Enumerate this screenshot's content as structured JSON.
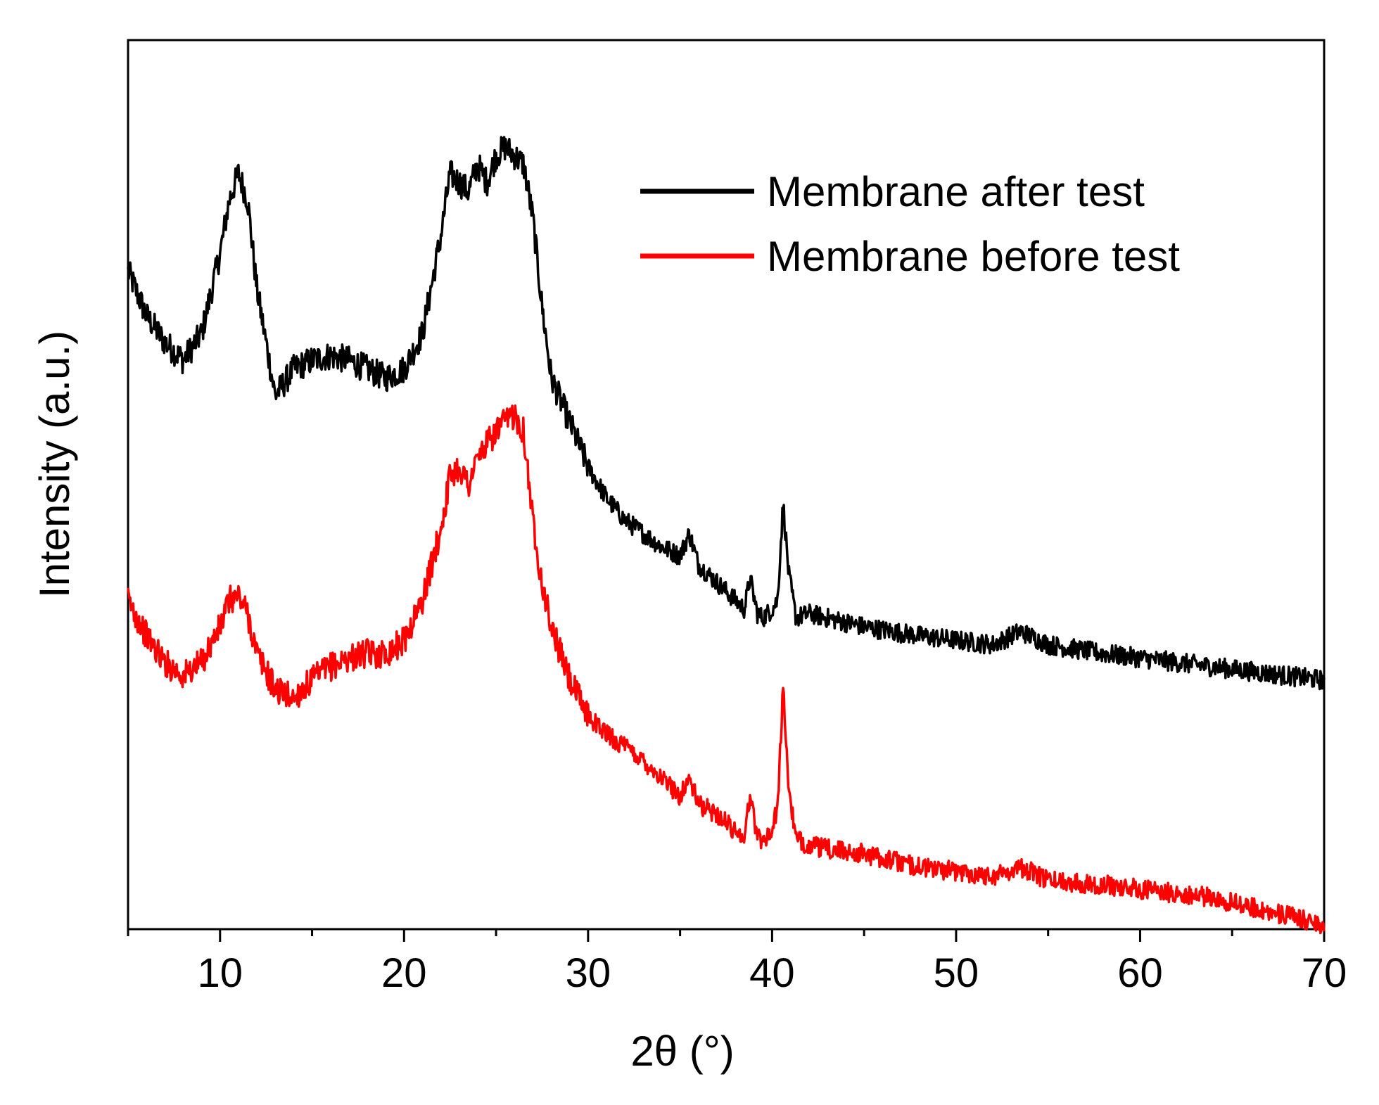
{
  "chart_data": {
    "type": "line",
    "title": "",
    "xlabel": "2θ (°)",
    "ylabel": "Intensity (a.u.)",
    "xlim": [
      5,
      70
    ],
    "ylim": [
      0,
      100
    ],
    "x_ticks": [
      10,
      20,
      30,
      40,
      50,
      60,
      70
    ],
    "x_tick_labels": [
      "10",
      "20",
      "30",
      "40",
      "50",
      "60",
      "70"
    ],
    "y_ticks_shown": false,
    "grid": false,
    "legend_position": "top-right",
    "series": [
      {
        "name": "Membrane after test",
        "color": "#000000",
        "x": [
          5,
          6,
          7,
          8,
          9,
          10,
          10.5,
          11,
          11.5,
          12,
          13,
          14,
          15,
          16,
          17,
          18,
          19,
          20,
          21,
          22,
          22.5,
          23,
          23.5,
          24,
          24.5,
          25,
          25.5,
          26,
          26.5,
          27,
          27.5,
          28,
          29,
          30,
          31,
          32,
          33,
          34,
          35,
          35.5,
          36,
          37,
          38,
          38.5,
          38.8,
          39.2,
          39.5,
          40,
          40.3,
          40.6,
          40.9,
          41.3,
          42,
          43,
          45,
          48,
          50,
          52,
          53.5,
          55,
          58,
          60,
          62,
          64,
          66,
          68,
          70
        ],
        "values": [
          74,
          69,
          66,
          64,
          67,
          76,
          82,
          85,
          82,
          72,
          60,
          63,
          64,
          64.5,
          64,
          63,
          62,
          63,
          67,
          78,
          85,
          84,
          83,
          86,
          84,
          87,
          88,
          87,
          86,
          80,
          70,
          62,
          57,
          52,
          48.5,
          46,
          44.5,
          43,
          42,
          44.5,
          41,
          39,
          37,
          36,
          39.5,
          35.5,
          35,
          36,
          37,
          48,
          40,
          35,
          35.5,
          35,
          34,
          33,
          32.5,
          32,
          33.5,
          32,
          31,
          30.5,
          30,
          29.5,
          29,
          28.5,
          28
        ]
      },
      {
        "name": "Membrane before test",
        "color": "#ff0000",
        "x": [
          5,
          6,
          7,
          8,
          9,
          10,
          10.5,
          11,
          11.5,
          12,
          13,
          14,
          15,
          16,
          17,
          18,
          19,
          20,
          21,
          22,
          22.5,
          23,
          23.5,
          24,
          24.5,
          25,
          25.5,
          26,
          26.5,
          27,
          27.5,
          28,
          29,
          30,
          31,
          32,
          33,
          34,
          35,
          35.5,
          36,
          37,
          38,
          38.5,
          38.8,
          39.2,
          39.5,
          40,
          40.3,
          40.6,
          40.9,
          41.3,
          42,
          43,
          45,
          48,
          50,
          52,
          53.5,
          55,
          58,
          60,
          62,
          64,
          66,
          68,
          70
        ],
        "values": [
          37,
          33,
          30,
          28.5,
          30,
          34,
          37,
          37.5,
          35.5,
          31,
          27,
          26,
          28,
          29.5,
          30.5,
          31,
          31,
          32.5,
          37,
          45,
          51,
          52,
          50,
          53,
          54.5,
          56,
          57,
          58,
          56,
          46,
          39,
          34,
          28,
          24,
          22,
          20.5,
          19,
          17,
          15,
          17,
          14,
          13,
          11,
          10.5,
          15,
          10.5,
          10,
          11,
          14,
          27,
          16,
          10,
          9.5,
          9,
          8.5,
          7,
          6.5,
          6,
          7,
          5.5,
          5,
          4.5,
          4,
          3.5,
          2.5,
          1.5,
          0.5
        ]
      }
    ]
  }
}
